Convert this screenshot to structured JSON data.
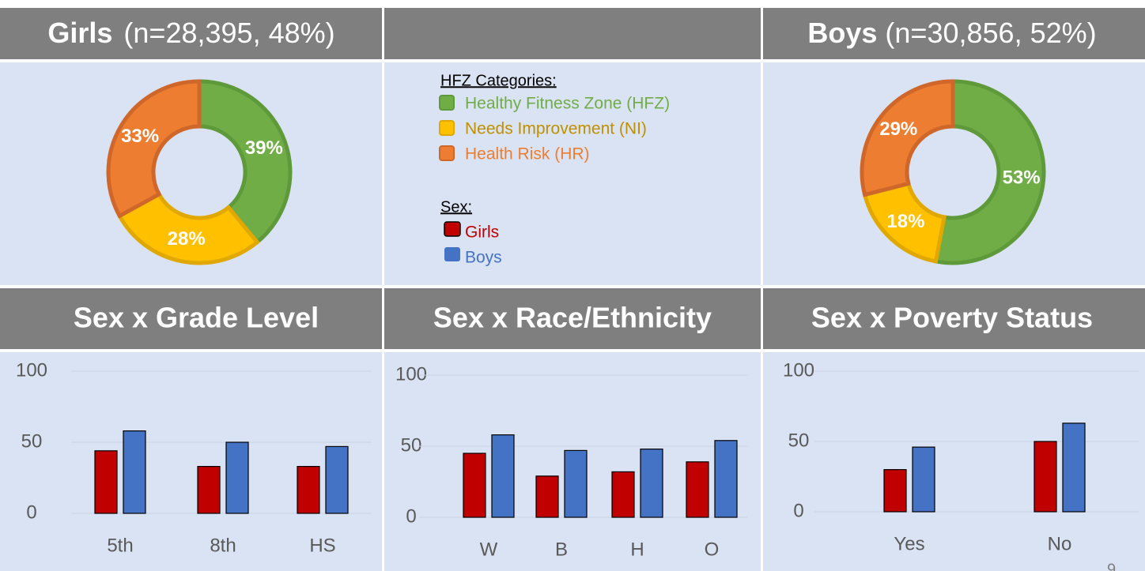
{
  "chart_data": [
    {
      "type": "pie",
      "title": "Girls",
      "subtitle": "(n=28,395, 48%)",
      "categories": [
        "Healthy Fitness Zone (HFZ)",
        "Needs Improvement (NI)",
        "Health Risk (HR)"
      ],
      "values": [
        39,
        28,
        33
      ],
      "value_labels": [
        "39%",
        "28%",
        "33%"
      ],
      "colors": [
        "#70ad47",
        "#ffc000",
        "#ed7d31"
      ],
      "edge_colors": [
        "#5e9a3a",
        "#e0a800",
        "#d0672a"
      ],
      "legend_title": "HFZ Categories:",
      "legend_text_colors": [
        "#70ad47",
        "#bf9000",
        "#ed7d31"
      ]
    },
    {
      "type": "pie",
      "title": "Boys",
      "subtitle": "(n=30,856, 52%)",
      "categories": [
        "Healthy Fitness Zone (HFZ)",
        "Needs Improvement (NI)",
        "Health Risk (HR)"
      ],
      "values": [
        53,
        18,
        29
      ],
      "value_labels": [
        "53%",
        "18%",
        "29%"
      ],
      "colors": [
        "#70ad47",
        "#ffc000",
        "#ed7d31"
      ],
      "edge_colors": [
        "#5e9a3a",
        "#e0a800",
        "#d0672a"
      ]
    },
    {
      "type": "bar",
      "title": "Sex x Grade Level",
      "legend_title": "Sex:",
      "categories": [
        "5th",
        "8th",
        "HS"
      ],
      "series": [
        {
          "name": "Girls",
          "color": "#c00000",
          "values": [
            44,
            33,
            33
          ]
        },
        {
          "name": "Boys",
          "color": "#4472c4",
          "values": [
            58,
            50,
            47
          ]
        }
      ],
      "ylim": [
        0,
        100
      ],
      "yticks": [
        0,
        50,
        100
      ],
      "grid": true
    },
    {
      "type": "bar",
      "title": "Sex x Race/Ethnicity",
      "categories": [
        "W",
        "B",
        "H",
        "O"
      ],
      "series": [
        {
          "name": "Girls",
          "color": "#c00000",
          "values": [
            45,
            29,
            32,
            39
          ]
        },
        {
          "name": "Boys",
          "color": "#4472c4",
          "values": [
            58,
            47,
            48,
            54
          ]
        }
      ],
      "ylim": [
        0,
        100
      ],
      "yticks": [
        0,
        50,
        100
      ],
      "grid": true
    },
    {
      "type": "bar",
      "title": "Sex x Poverty Status",
      "categories": [
        "Yes",
        "No"
      ],
      "series": [
        {
          "name": "Girls",
          "color": "#c00000",
          "values": [
            30,
            50
          ]
        },
        {
          "name": "Boys",
          "color": "#4472c4",
          "values": [
            46,
            63
          ]
        }
      ],
      "ylim": [
        0,
        100
      ],
      "yticks": [
        0,
        50,
        100
      ],
      "grid": true
    }
  ],
  "page_number": "9"
}
